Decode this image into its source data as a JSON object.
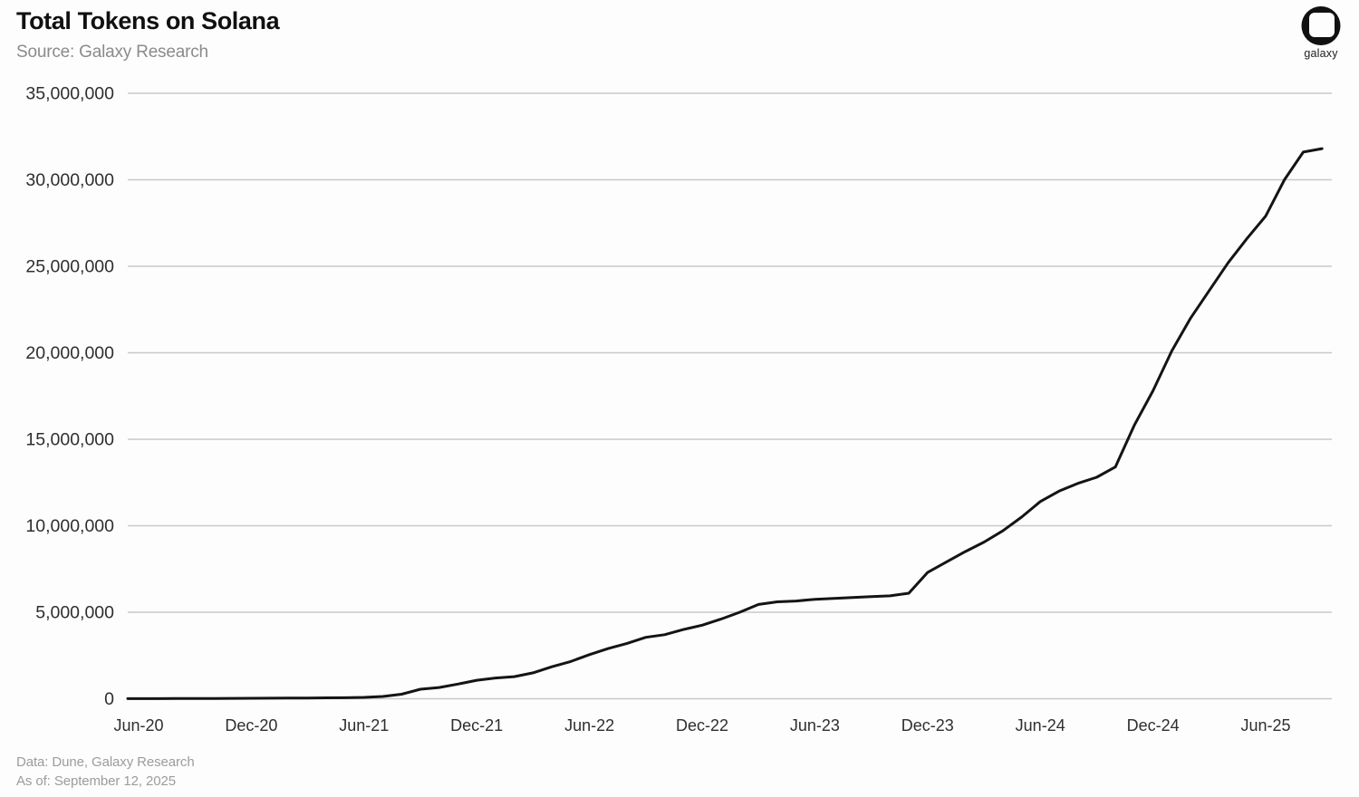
{
  "header": {
    "title": "Total Tokens on Solana",
    "source": "Source: Galaxy Research"
  },
  "branding": {
    "logo_label": "galaxy"
  },
  "footer": {
    "data_source": "Data: Dune, Galaxy Research",
    "as_of": "As of: September 12, 2025"
  },
  "colors": {
    "line": "#141414",
    "grid": "#c9c9c9",
    "tick": "#2e2e2e",
    "title": "#101010",
    "muted": "#8b8b8b",
    "background": "#fdfdfd"
  },
  "chart_data": {
    "type": "line",
    "title": "Total Tokens on Solana",
    "xlabel": "",
    "ylabel": "",
    "ylim": [
      0,
      35000000
    ],
    "grid": "horizontal",
    "legend": "none",
    "series_name": "Total Tokens on Solana",
    "x": [
      "May-20",
      "Jun-20",
      "Jul-20",
      "Aug-20",
      "Sep-20",
      "Oct-20",
      "Nov-20",
      "Dec-20",
      "Jan-21",
      "Feb-21",
      "Mar-21",
      "Apr-21",
      "May-21",
      "Jun-21",
      "Jul-21",
      "Aug-21",
      "Sep-21",
      "Oct-21",
      "Nov-21",
      "Dec-21",
      "Jan-22",
      "Feb-22",
      "Mar-22",
      "Apr-22",
      "May-22",
      "Jun-22",
      "Jul-22",
      "Aug-22",
      "Sep-22",
      "Oct-22",
      "Nov-22",
      "Dec-22",
      "Jan-23",
      "Feb-23",
      "Mar-23",
      "Apr-23",
      "May-23",
      "Jun-23",
      "Jul-23",
      "Aug-23",
      "Sep-23",
      "Oct-23",
      "Nov-23",
      "Dec-23",
      "Jan-24",
      "Feb-24",
      "Mar-24",
      "Apr-24",
      "May-24",
      "Jun-24",
      "Jul-24",
      "Aug-24",
      "Sep-24",
      "Oct-24",
      "Nov-24",
      "Dec-24",
      "Jan-25",
      "Feb-25",
      "Mar-25",
      "Apr-25",
      "May-25",
      "Jun-25",
      "Jul-25",
      "Aug-25",
      "Sep-25"
    ],
    "values": [
      4000,
      5000,
      7000,
      9000,
      12000,
      15000,
      19000,
      24000,
      29000,
      35000,
      42000,
      50000,
      60000,
      80000,
      130000,
      260000,
      550000,
      650000,
      850000,
      1070000,
      1200000,
      1280000,
      1500000,
      1850000,
      2150000,
      2550000,
      2900000,
      3200000,
      3550000,
      3700000,
      4000000,
      4250000,
      4600000,
      5000000,
      5450000,
      5600000,
      5650000,
      5750000,
      5800000,
      5850000,
      5900000,
      5950000,
      6100000,
      7300000,
      7900000,
      8500000,
      9050000,
      9700000,
      10500000,
      11400000,
      12000000,
      12450000,
      12800000,
      13400000,
      15800000,
      17800000,
      20100000,
      22000000,
      23600000,
      25200000,
      26600000,
      27900000,
      30000000,
      31600000,
      31800000
    ],
    "x_tick_labels": [
      "Jun-20",
      "Dec-20",
      "Jun-21",
      "Dec-21",
      "Jun-22",
      "Dec-22",
      "Jun-23",
      "Dec-23",
      "Jun-24",
      "Dec-24",
      "Jun-25"
    ],
    "x_tick_indices": [
      1,
      7,
      13,
      19,
      25,
      31,
      37,
      43,
      49,
      55,
      61
    ],
    "y_ticks": [
      0,
      5000000,
      10000000,
      15000000,
      20000000,
      25000000,
      30000000,
      35000000
    ]
  }
}
